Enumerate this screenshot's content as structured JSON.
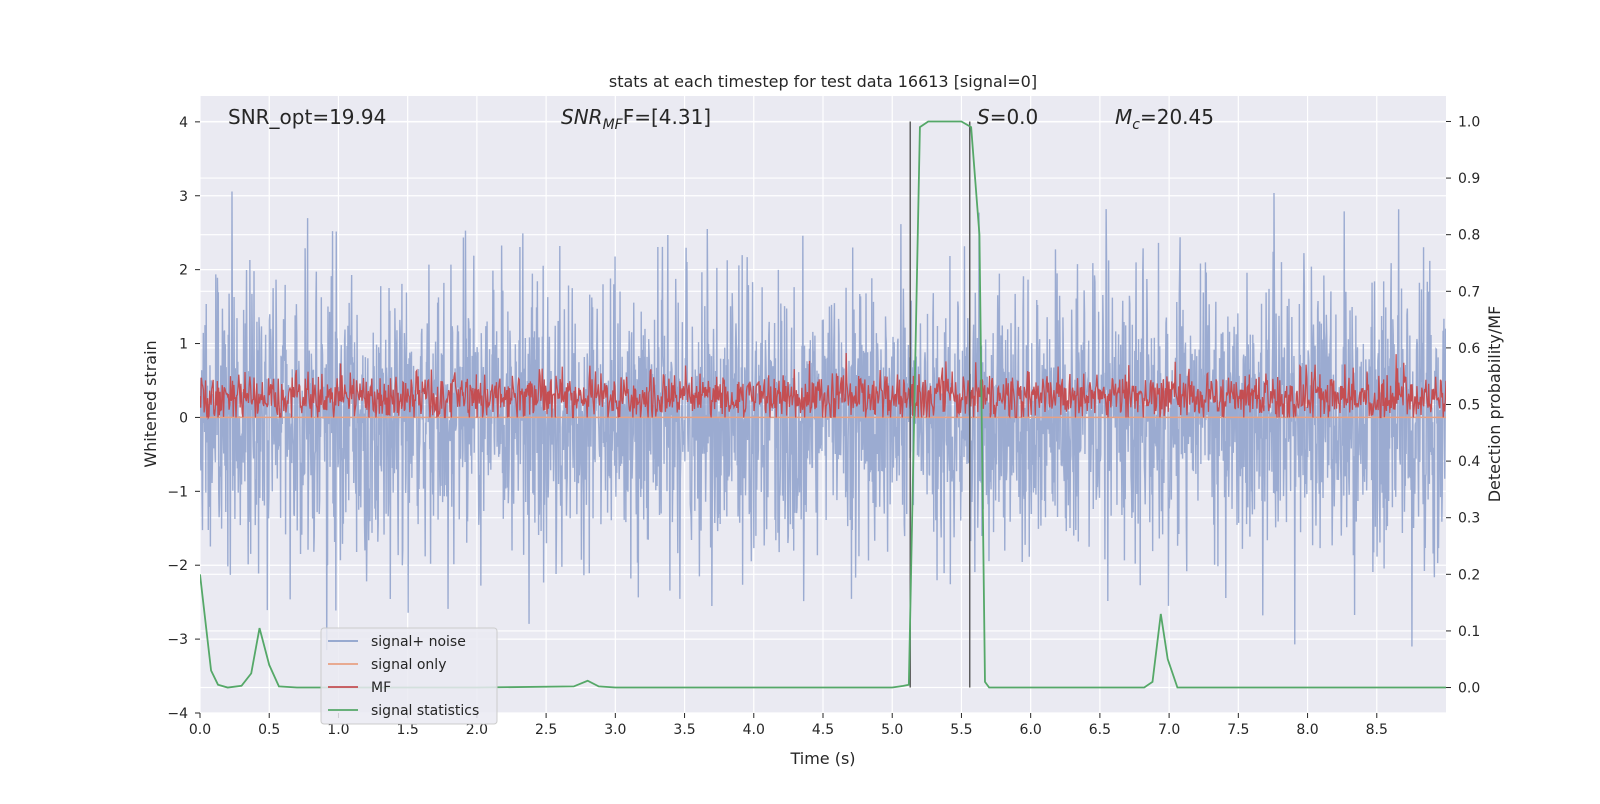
{
  "chart_data": {
    "type": "line",
    "title": "stats at each timestep for test data 16613 [signal=0]",
    "xlabel": "Time (s)",
    "ylabel": "Whitened strain",
    "ylabel_right": "Detection probability/MF",
    "xlim": [
      0.0,
      9.0
    ],
    "ylim": [
      -4.0,
      4.35
    ],
    "ylim_right": [
      -0.045,
      1.045
    ],
    "x_ticks": [
      "0.0",
      "0.5",
      "1.0",
      "1.5",
      "2.0",
      "2.5",
      "3.0",
      "3.5",
      "4.0",
      "4.5",
      "5.0",
      "5.5",
      "6.0",
      "6.5",
      "7.0",
      "7.5",
      "8.0",
      "8.5"
    ],
    "y_ticks": [
      "4",
      "3",
      "2",
      "1",
      "0",
      "−1",
      "−2",
      "−3",
      "−4"
    ],
    "y_ticks_right": [
      "1.0",
      "0.9",
      "0.8",
      "0.7",
      "0.6",
      "0.5",
      "0.4",
      "0.3",
      "0.2",
      "0.1",
      "0.0"
    ],
    "grid": true,
    "legend_position": "lower-left",
    "annotations": {
      "snr_opt": "SNR_opt=19.94",
      "snr_mf_main": "SNR",
      "snr_mf_sub": "MF",
      "snr_mf_rest": "F=[4.31]",
      "s_main": "S",
      "s_rest": "=0.0",
      "mc_main": "M",
      "mc_sub": "c",
      "mc_rest": "=20.45"
    },
    "vertical_lines_x": [
      5.13,
      5.56
    ],
    "series": [
      {
        "name": "signal+ noise",
        "color": "#8da0cb",
        "envelope": {
          "typical_range": [
            -1.7,
            1.7
          ],
          "max_peak": 4.0,
          "min_peak": -3.6
        }
      },
      {
        "name": "signal only",
        "color": "#e8a183",
        "approx_value": 0.0
      },
      {
        "name": "MF",
        "color": "#c44e52",
        "envelope": {
          "typical_range": [
            0.0,
            0.95
          ],
          "axis": "left"
        }
      },
      {
        "name": "signal statistics",
        "color": "#55a868",
        "axis": "right",
        "x": [
          0.0,
          0.08,
          0.13,
          0.2,
          0.3,
          0.37,
          0.43,
          0.5,
          0.57,
          0.7,
          1.0,
          2.0,
          2.7,
          2.8,
          2.88,
          3.0,
          4.0,
          5.0,
          5.08,
          5.12,
          5.2,
          5.26,
          5.4,
          5.5,
          5.57,
          5.63,
          5.67,
          5.7,
          6.0,
          6.5,
          6.82,
          6.88,
          6.94,
          6.99,
          7.06,
          8.0,
          9.0
        ],
        "y": [
          0.2,
          0.03,
          0.005,
          0.0,
          0.003,
          0.025,
          0.105,
          0.04,
          0.002,
          0.0,
          0.0,
          0.0,
          0.002,
          0.012,
          0.002,
          0.0,
          0.0,
          0.0,
          0.003,
          0.005,
          0.99,
          1.0,
          1.0,
          1.0,
          0.99,
          0.8,
          0.01,
          0.0,
          0.0,
          0.0,
          0.0,
          0.01,
          0.13,
          0.05,
          0.0,
          0.0,
          0.0
        ]
      }
    ]
  }
}
